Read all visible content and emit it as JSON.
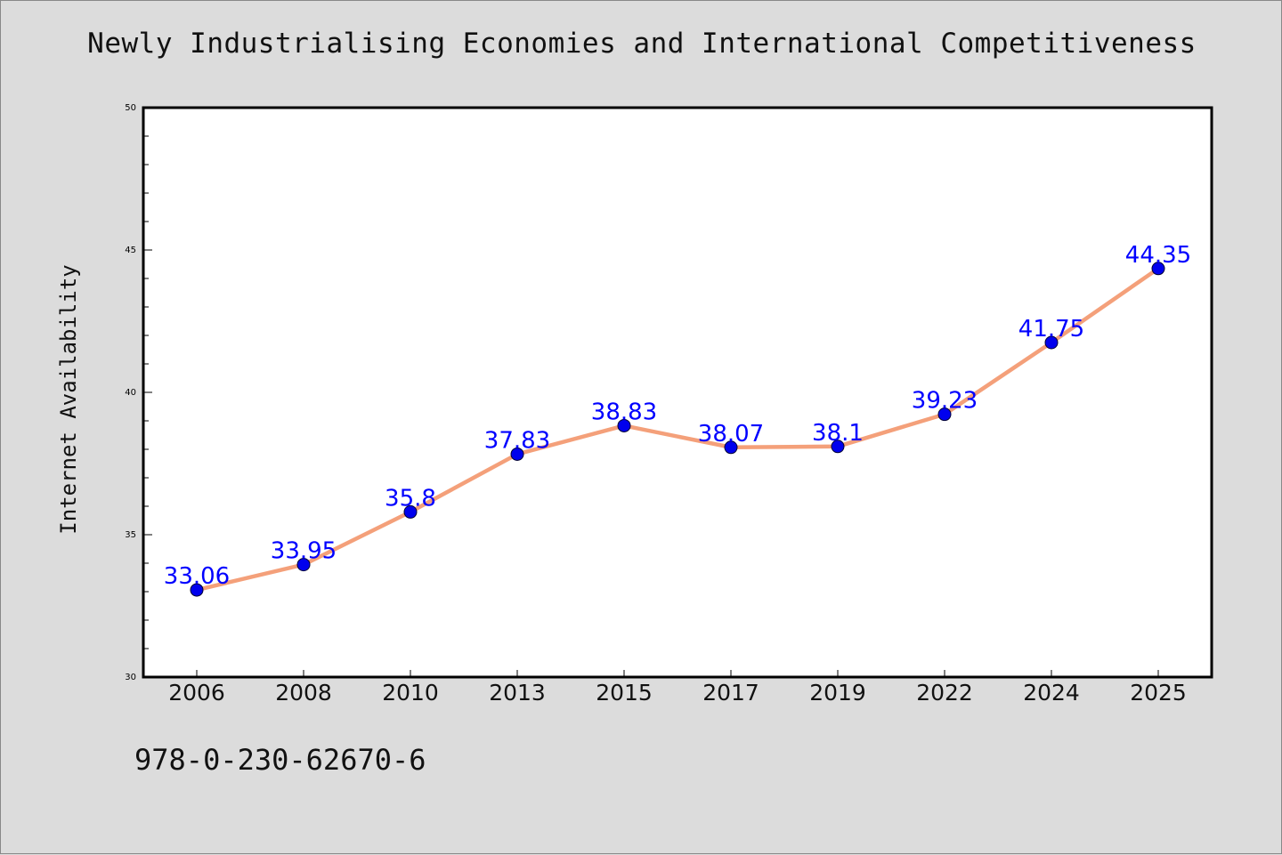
{
  "title": "Newly Industrialising Economies and International Competitiveness",
  "footer_code": "978-0-230-62670-6",
  "colors": {
    "background": "#dcdcdc",
    "plot_background": "#ffffff",
    "line": "#f4a07a",
    "marker": "#0000ee",
    "data_label": "#0000ff"
  },
  "chart_data": {
    "type": "line",
    "title": "Newly Industrialising Economies and International Competitiveness",
    "xlabel": "",
    "ylabel": "Internet Availability",
    "categories": [
      "2006",
      "2008",
      "2010",
      "2013",
      "2015",
      "2017",
      "2019",
      "2022",
      "2024",
      "2025"
    ],
    "series": [
      {
        "values": [
          33.06,
          33.95,
          35.8,
          37.83,
          38.83,
          38.07,
          38.1,
          39.23,
          41.75,
          44.35
        ],
        "labels": [
          "33.06",
          "33.95",
          "35.8",
          "37.83",
          "38.83",
          "38.07",
          "38.1",
          "39.23",
          "41.75",
          "44.35"
        ]
      }
    ],
    "ylim": [
      30,
      50
    ],
    "yticks": [
      "30",
      "35",
      "40",
      "45",
      "50"
    ],
    "grid": false,
    "legend": "none"
  }
}
